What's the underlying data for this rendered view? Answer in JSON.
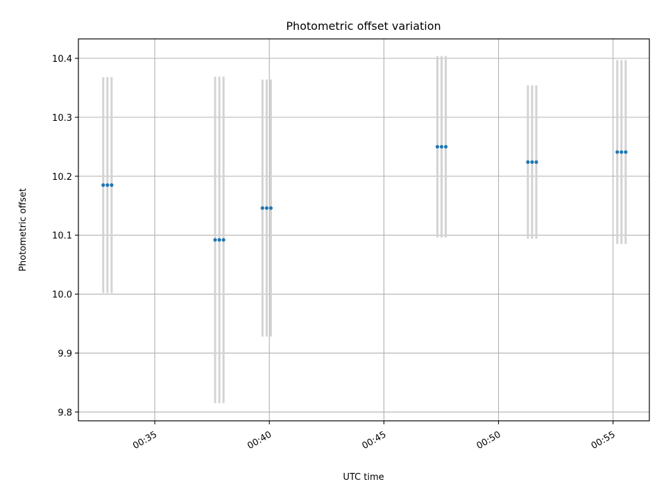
{
  "chart_data": {
    "type": "scatter",
    "title": "Photometric offset variation",
    "xlabel": "UTC time",
    "ylabel": "Photometric offset",
    "xlim": [
      "00:31:40",
      "00:56:35"
    ],
    "ylim": [
      9.785,
      10.433
    ],
    "grid": true,
    "x_ticks": [
      "00:35",
      "00:40",
      "00:45",
      "00:50",
      "00:55"
    ],
    "y_ticks": [
      "9.8",
      "9.9",
      "10.0",
      "10.1",
      "10.2",
      "10.3",
      "10.4"
    ],
    "marker_color": "#1f77b4",
    "errorbar_color": "#d3d3d3",
    "points": [
      {
        "time": "00:32:45",
        "y": 10.185,
        "yerr": 0.183
      },
      {
        "time": "00:32:56",
        "y": 10.185,
        "yerr": 0.183
      },
      {
        "time": "00:33:07",
        "y": 10.185,
        "yerr": 0.183
      },
      {
        "time": "00:37:38",
        "y": 10.092,
        "yerr": 0.277
      },
      {
        "time": "00:37:49",
        "y": 10.092,
        "yerr": 0.277
      },
      {
        "time": "00:38:00",
        "y": 10.092,
        "yerr": 0.277
      },
      {
        "time": "00:39:42",
        "y": 10.146,
        "yerr": 0.218
      },
      {
        "time": "00:39:53",
        "y": 10.146,
        "yerr": 0.218
      },
      {
        "time": "00:40:04",
        "y": 10.146,
        "yerr": 0.218
      },
      {
        "time": "00:47:20",
        "y": 10.25,
        "yerr": 0.154
      },
      {
        "time": "00:47:31",
        "y": 10.25,
        "yerr": 0.154
      },
      {
        "time": "00:47:42",
        "y": 10.25,
        "yerr": 0.154
      },
      {
        "time": "00:51:17",
        "y": 10.224,
        "yerr": 0.13
      },
      {
        "time": "00:51:28",
        "y": 10.224,
        "yerr": 0.13
      },
      {
        "time": "00:51:39",
        "y": 10.224,
        "yerr": 0.13
      },
      {
        "time": "00:55:11",
        "y": 10.241,
        "yerr": 0.156
      },
      {
        "time": "00:55:22",
        "y": 10.241,
        "yerr": 0.156
      },
      {
        "time": "00:55:33",
        "y": 10.241,
        "yerr": 0.156
      }
    ]
  }
}
